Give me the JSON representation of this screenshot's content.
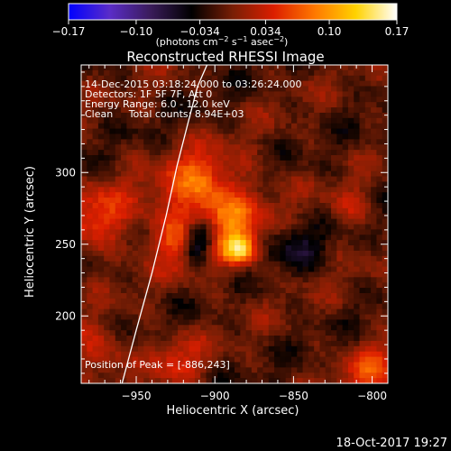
{
  "chart_data": {
    "type": "heatmap",
    "title": "Reconstructed RHESSI Image",
    "xlabel": "Heliocentric X (arcsec)",
    "ylabel": "Heliocentric Y (arcsec)",
    "xlim": [
      -985,
      -790
    ],
    "ylim": [
      153,
      375
    ],
    "xticks": [
      -950,
      -900,
      -850,
      -800
    ],
    "yticks": [
      200,
      250,
      300
    ],
    "xtick_labels": [
      "−950",
      "−900",
      "−850",
      "−800"
    ],
    "ytick_labels": [
      "200",
      "250",
      "300"
    ],
    "colorbar": {
      "min": -0.17,
      "max": 0.17,
      "ticks": [
        -0.17,
        -0.1,
        -0.034,
        0.034,
        0.1,
        0.17
      ],
      "tick_labels": [
        "−0.17",
        "−0.10",
        "−0.034",
        "0.034",
        "0.10",
        "0.17"
      ],
      "units_main": "(photons cm",
      "units_exp1": "−2",
      "units_mid": " s",
      "units_exp2": "−1",
      "units_mid2": " asec",
      "units_exp3": "−2",
      "units_end": ")",
      "colormap": [
        "#0000ff",
        "#5a2cc8",
        "#3a1c5a",
        "#000000",
        "#781e05",
        "#dc1e00",
        "#ff7800",
        "#ffd200",
        "#ffffff"
      ]
    },
    "annotations": [
      "14-Dec-2015 03:18:24.000 to 03:26:24.000",
      "Detectors: 1F 5F 7F, Att 0",
      "Energy Range: 6.0 - 12.0 keV",
      "Clean     Total counts: 8.94E+03"
    ],
    "peak_label": "Position of Peak = [-886,243]",
    "peak": {
      "x": -886,
      "y": 243
    },
    "limb_x_points": [
      -959,
      -950,
      -940,
      -931,
      -924,
      -917,
      -911,
      -905
    ],
    "limb_y_points": [
      153,
      190,
      230,
      270,
      305,
      335,
      360,
      375
    ],
    "sources": [
      {
        "x": -905,
        "y": 272,
        "amp": 0.085,
        "sigma": 24
      },
      {
        "x": -910,
        "y": 298,
        "amp": 0.045,
        "sigma": 11
      },
      {
        "x": -921,
        "y": 252,
        "amp": 0.05,
        "sigma": 10
      },
      {
        "x": -888,
        "y": 268,
        "amp": 0.03,
        "sigma": 9
      },
      {
        "x": -884,
        "y": 247,
        "amp": 0.13,
        "sigma": 7
      },
      {
        "x": -910,
        "y": 256,
        "amp": -0.13,
        "sigma": 8
      },
      {
        "x": -912,
        "y": 243,
        "amp": -0.06,
        "sigma": 6
      },
      {
        "x": -975,
        "y": 268,
        "amp": 0.06,
        "sigma": 16
      },
      {
        "x": -800,
        "y": 160,
        "amp": 0.06,
        "sigma": 14
      },
      {
        "x": -975,
        "y": 175,
        "amp": 0.05,
        "sigma": 13
      },
      {
        "x": -925,
        "y": 170,
        "amp": 0.045,
        "sigma": 12
      },
      {
        "x": -850,
        "y": 250,
        "amp": -0.04,
        "sigma": 12
      },
      {
        "x": -812,
        "y": 275,
        "amp": 0.035,
        "sigma": 10
      }
    ]
  },
  "footer": {
    "timestamp": "18-Oct-2017 19:27"
  }
}
